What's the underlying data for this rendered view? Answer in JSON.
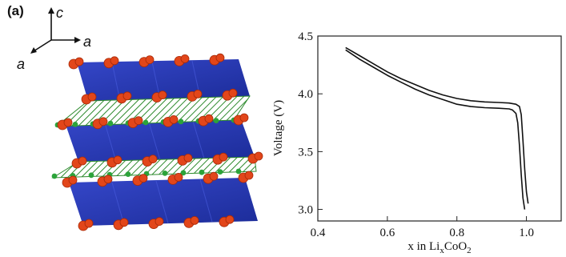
{
  "panel_label": "(a)",
  "crystal_axes": {
    "c": "c",
    "a1": "a",
    "a2": "a"
  },
  "colors": {
    "octahedra": "#2a3cb8",
    "octahedra_dark": "#1b2a94",
    "oxygen": "#e2461a",
    "lithium": "#2ca33a",
    "curve": "#111111"
  },
  "chart_data": {
    "type": "line",
    "xlabel_parts": {
      "prefix": "x in Li",
      "sub1": "x",
      "mid": "CoO",
      "sub2": "2"
    },
    "ylabel": "Voltage (V)",
    "xlim": [
      0.4,
      1.1
    ],
    "ylim": [
      2.9,
      4.5
    ],
    "xticks": [
      "0.4",
      "0.6",
      "0.8",
      "1.0"
    ],
    "xtick_values": [
      0.4,
      0.6,
      0.8,
      1.0
    ],
    "yticks": [
      "3.0",
      "3.5",
      "4.0",
      "4.5"
    ],
    "ytick_values": [
      3.0,
      3.5,
      4.0,
      4.5
    ],
    "grid": false,
    "series": [
      {
        "x": [
          0.48,
          0.52,
          0.56,
          0.6,
          0.64,
          0.68,
          0.72,
          0.76,
          0.8,
          0.84,
          0.88,
          0.92,
          0.95,
          0.97,
          0.98,
          0.985,
          0.99,
          0.995,
          1.0,
          1.005
        ],
        "y": [
          4.4,
          4.33,
          4.26,
          4.19,
          4.13,
          4.08,
          4.03,
          3.99,
          3.96,
          3.94,
          3.93,
          3.925,
          3.92,
          3.91,
          3.89,
          3.82,
          3.6,
          3.35,
          3.15,
          3.05
        ]
      },
      {
        "x": [
          0.48,
          0.52,
          0.56,
          0.6,
          0.64,
          0.68,
          0.72,
          0.76,
          0.8,
          0.84,
          0.88,
          0.92,
          0.95,
          0.96,
          0.97,
          0.975,
          0.98,
          0.985,
          0.99,
          0.995
        ],
        "y": [
          4.38,
          4.3,
          4.23,
          4.16,
          4.1,
          4.04,
          3.99,
          3.95,
          3.91,
          3.89,
          3.88,
          3.875,
          3.87,
          3.86,
          3.83,
          3.75,
          3.55,
          3.3,
          3.1,
          3.0
        ]
      }
    ]
  }
}
